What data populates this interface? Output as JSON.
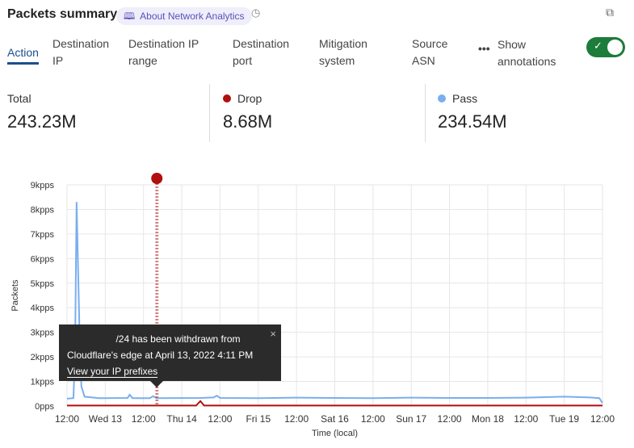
{
  "header": {
    "title": "Packets summary",
    "about_label": "About Network Analytics",
    "about_icon": "book-icon",
    "clock_icon": "clock-icon",
    "copy_icon": "copy-icon"
  },
  "tabs": [
    {
      "label": "Action",
      "active": true
    },
    {
      "label": "Destination IP"
    },
    {
      "label": "Destination IP range"
    },
    {
      "label": "Destination port"
    },
    {
      "label": "Mitigation system"
    },
    {
      "label": "Source ASN"
    }
  ],
  "more_label": "•••",
  "annotations": {
    "label": "Show annotations",
    "enabled": true,
    "color": "#1d7c3a"
  },
  "stats": [
    {
      "label": "Total",
      "value": "243.23M"
    },
    {
      "label": "Drop",
      "value": "8.68M",
      "color": "#b01010"
    },
    {
      "label": "Pass",
      "value": "234.54M",
      "color": "#7aaef0"
    }
  ],
  "tooltip": {
    "line1": "/24 has been withdrawn from",
    "line2": "Cloudflare's edge at April 13, 2022 4:11 PM",
    "link": "View your IP prefixes",
    "close": "×"
  },
  "chart_data": {
    "type": "line",
    "xlabel": "Time (local)",
    "ylabel": "Packets",
    "ylim": [
      0,
      9000
    ],
    "yticks": [
      "0pps",
      "1kpps",
      "2kpps",
      "3kpps",
      "4kpps",
      "5kpps",
      "6kpps",
      "7kpps",
      "8kpps",
      "9kpps"
    ],
    "xlim": [
      "2022-04-12T12:00",
      "2022-04-19T12:00"
    ],
    "xticks": [
      "12:00",
      "Wed 13",
      "12:00",
      "Thu 14",
      "12:00",
      "Fri 15",
      "12:00",
      "Sat 16",
      "12:00",
      "Sun 17",
      "12:00",
      "Mon 18",
      "12:00",
      "Tue 19",
      "12:00"
    ],
    "grid": true,
    "annotation_time": "2022-04-13T16:11",
    "series": [
      {
        "name": "Pass",
        "color": "#7aaef0",
        "points": [
          [
            "2022-04-12T12:00",
            300
          ],
          [
            "2022-04-12T14:00",
            320
          ],
          [
            "2022-04-12T14:30",
            2000
          ],
          [
            "2022-04-12T15:00",
            8300
          ],
          [
            "2022-04-12T16:00",
            2500
          ],
          [
            "2022-04-12T16:30",
            800
          ],
          [
            "2022-04-12T17:30",
            380
          ],
          [
            "2022-04-12T22:00",
            320
          ],
          [
            "2022-04-13T07:00",
            330
          ],
          [
            "2022-04-13T07:40",
            460
          ],
          [
            "2022-04-13T08:30",
            320
          ],
          [
            "2022-04-13T14:00",
            320
          ],
          [
            "2022-04-13T15:00",
            400
          ],
          [
            "2022-04-13T16:00",
            320
          ],
          [
            "2022-04-14T06:00",
            330
          ],
          [
            "2022-04-14T10:00",
            350
          ],
          [
            "2022-04-14T11:00",
            420
          ],
          [
            "2022-04-14T12:00",
            330
          ],
          [
            "2022-04-15T00:00",
            320
          ],
          [
            "2022-04-15T12:00",
            340
          ],
          [
            "2022-04-16T00:00",
            330
          ],
          [
            "2022-04-16T12:00",
            320
          ],
          [
            "2022-04-17T00:00",
            340
          ],
          [
            "2022-04-17T12:00",
            330
          ],
          [
            "2022-04-18T00:00",
            330
          ],
          [
            "2022-04-18T12:00",
            340
          ],
          [
            "2022-04-19T00:00",
            380
          ],
          [
            "2022-04-19T08:00",
            350
          ],
          [
            "2022-04-19T11:00",
            320
          ],
          [
            "2022-04-19T12:00",
            120
          ]
        ]
      },
      {
        "name": "Drop",
        "color": "#b01010",
        "points": [
          [
            "2022-04-12T12:00",
            20
          ],
          [
            "2022-04-14T04:30",
            20
          ],
          [
            "2022-04-14T05:50",
            200
          ],
          [
            "2022-04-14T07:00",
            20
          ],
          [
            "2022-04-19T12:00",
            20
          ]
        ]
      }
    ]
  }
}
